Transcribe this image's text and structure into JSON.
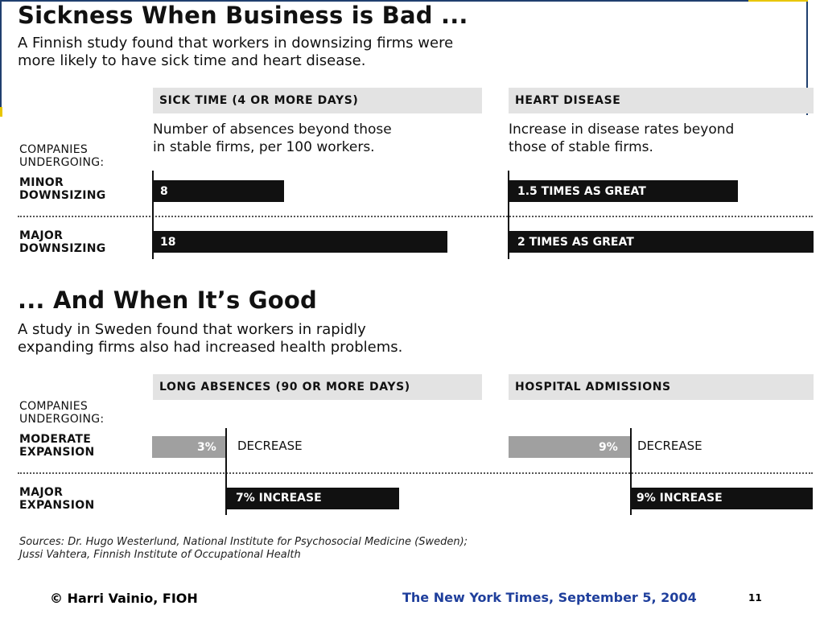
{
  "colors": {
    "bar_dark": "#111111",
    "bar_gray": "#a0a0a0",
    "panel_bg": "#e3e3e3",
    "footer_blue": "#1f3f9c"
  },
  "section1": {
    "title": "Sickness When Business is Bad ...",
    "subtitle_line1": "A Finnish study found that workers in downsizing firms were",
    "subtitle_line2": "more likely to have sick time and heart disease.",
    "companies_label": "COMPANIES\nUNDERGOING:",
    "rows": [
      "MINOR\nDOWNSIZING",
      "MAJOR\nDOWNSIZING"
    ]
  },
  "section2": {
    "title": "... And When It’s Good",
    "subtitle_line1": "A study in Sweden found that workers in rapidly",
    "subtitle_line2": "expanding firms also had increased health problems.",
    "companies_label": "COMPANIES\nUNDERGOING:",
    "rows": [
      "MODERATE\nEXPANSION",
      "MAJOR\nEXPANSION"
    ]
  },
  "chart_data": [
    {
      "type": "bar",
      "title": "SICK TIME (4 OR MORE DAYS)",
      "subtitle": "Number of absences beyond those in stable firms, per 100 workers.",
      "desc_line1": "Number of absences beyond those",
      "desc_line2": "in stable firms, per 100 workers.",
      "categories": [
        "MINOR DOWNSIZING",
        "MAJOR DOWNSIZING"
      ],
      "values": [
        8,
        18
      ],
      "labels": [
        "8",
        "18"
      ]
    },
    {
      "type": "bar",
      "title": "HEART DISEASE",
      "subtitle": "Increase in disease rates beyond those of stable firms.",
      "desc_line1": "Increase in disease rates beyond",
      "desc_line2": "those of stable firms.",
      "categories": [
        "MINOR DOWNSIZING",
        "MAJOR DOWNSIZING"
      ],
      "values": [
        1.5,
        2
      ],
      "labels": [
        "1.5 TIMES AS GREAT",
        "2 TIMES AS GREAT"
      ]
    },
    {
      "type": "bar",
      "title": "LONG ABSENCES (90 OR MORE DAYS)",
      "categories": [
        "MODERATE EXPANSION",
        "MAJOR EXPANSION"
      ],
      "values": [
        -3,
        7
      ],
      "labels": [
        "3%",
        "7% INCREASE"
      ],
      "side_labels": [
        "DECREASE",
        ""
      ]
    },
    {
      "type": "bar",
      "title": "HOSPITAL ADMISSIONS",
      "categories": [
        "MODERATE EXPANSION",
        "MAJOR EXPANSION"
      ],
      "values": [
        -9,
        9
      ],
      "labels": [
        "9%",
        "9% INCREASE"
      ],
      "side_labels": [
        "DECREASE",
        ""
      ]
    }
  ],
  "sources_line1": "Sources: Dr. Hugo Westerlund, National Institute for Psychosocial Medicine (Sweden);",
  "sources_line2": "Jussi Vahtera, Finnish Institute of Occupational Health",
  "footer": {
    "author": "© Harri Vainio, FIOH",
    "citation": "The New York Times, September 5, 2004",
    "page_number": "11"
  }
}
